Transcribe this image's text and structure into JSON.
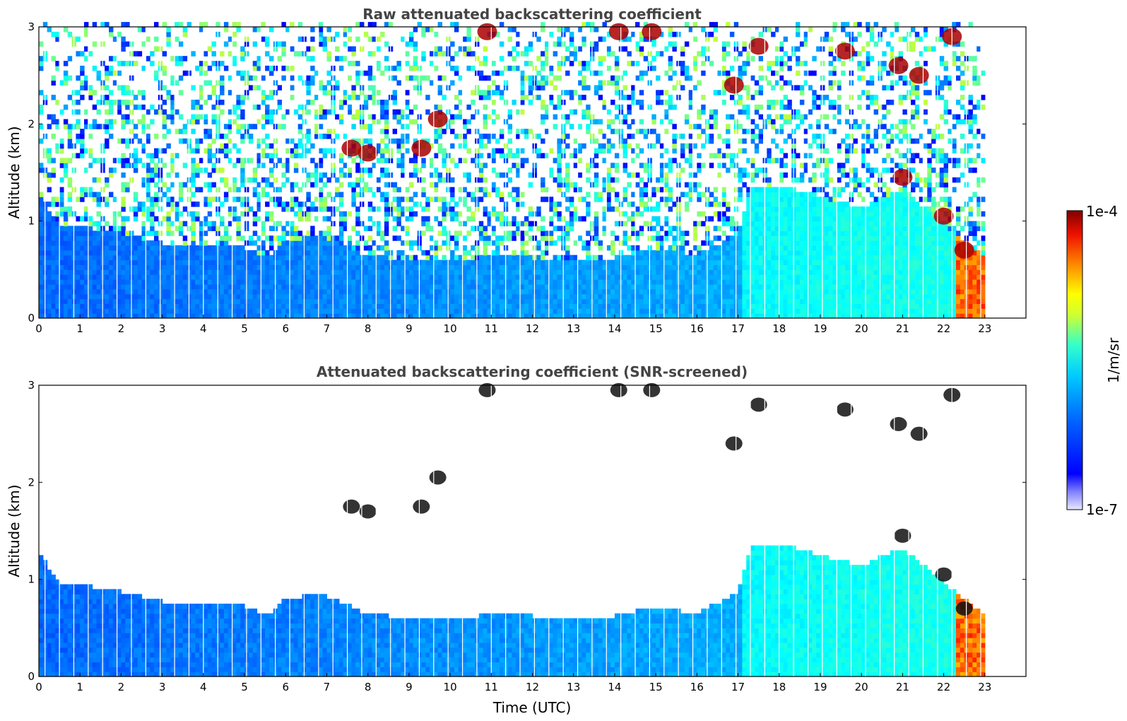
{
  "chart_data": [
    {
      "type": "heatmap",
      "title": "Raw attenuated backscattering coefficient",
      "xlabel": "",
      "ylabel": "Altitude (km)",
      "xlim": [
        0,
        24
      ],
      "ylim": [
        0,
        3
      ],
      "x_ticks": [
        "0",
        "1",
        "2",
        "3",
        "4",
        "5",
        "6",
        "7",
        "8",
        "9",
        "10",
        "11",
        "12",
        "13",
        "14",
        "15",
        "16",
        "17",
        "18",
        "19",
        "20",
        "21",
        "22",
        "23"
      ],
      "y_ticks": [
        "0",
        "1",
        "2",
        "3"
      ],
      "data_end_hour": 23,
      "clouds": [
        {
          "t": 7.6,
          "z": 1.75
        },
        {
          "t": 8.0,
          "z": 1.7
        },
        {
          "t": 9.3,
          "z": 1.75
        },
        {
          "t": 9.7,
          "z": 2.05
        },
        {
          "t": 10.9,
          "z": 2.95
        },
        {
          "t": 14.1,
          "z": 2.95
        },
        {
          "t": 14.9,
          "z": 2.95
        },
        {
          "t": 16.9,
          "z": 2.4
        },
        {
          "t": 17.5,
          "z": 2.8
        },
        {
          "t": 19.6,
          "z": 2.75
        },
        {
          "t": 20.9,
          "z": 2.6
        },
        {
          "t": 21.4,
          "z": 2.5
        },
        {
          "t": 21.0,
          "z": 1.45
        },
        {
          "t": 22.2,
          "z": 2.9
        },
        {
          "t": 22.0,
          "z": 1.05
        },
        {
          "t": 22.5,
          "z": 0.7
        }
      ]
    },
    {
      "type": "heatmap",
      "title": "Attenuated backscattering coefficient (SNR-screened)",
      "xlabel": "Time (UTC)",
      "ylabel": "Altitude (km)",
      "xlim": [
        0,
        24
      ],
      "ylim": [
        0,
        3
      ],
      "x_ticks": [
        "0",
        "1",
        "2",
        "3",
        "4",
        "5",
        "6",
        "7",
        "8",
        "9",
        "10",
        "11",
        "12",
        "13",
        "14",
        "15",
        "16",
        "17",
        "18",
        "19",
        "20",
        "21",
        "22",
        "23"
      ],
      "y_ticks": [
        "0",
        "1",
        "2",
        "3"
      ],
      "data_end_hour": 23,
      "boundary_layer_top_km": [
        [
          0,
          1.25
        ],
        [
          0.5,
          0.95
        ],
        [
          1,
          0.92
        ],
        [
          2,
          0.85
        ],
        [
          3,
          0.75
        ],
        [
          4,
          0.72
        ],
        [
          5,
          0.7
        ],
        [
          5.6,
          0.6
        ],
        [
          6,
          0.78
        ],
        [
          6.8,
          0.82
        ],
        [
          7,
          0.8
        ],
        [
          8,
          0.62
        ],
        [
          9,
          0.58
        ],
        [
          10,
          0.56
        ],
        [
          11,
          0.62
        ],
        [
          12,
          0.6
        ],
        [
          13,
          0.6
        ],
        [
          14,
          0.6
        ],
        [
          15,
          0.7
        ],
        [
          16,
          0.62
        ],
        [
          17,
          0.85
        ],
        [
          17.3,
          1.3
        ],
        [
          18,
          1.35
        ],
        [
          19,
          1.22
        ],
        [
          20,
          1.12
        ],
        [
          21,
          1.3
        ],
        [
          22,
          0.95
        ],
        [
          23,
          0.6
        ]
      ]
    }
  ],
  "colorbar": {
    "label": "1/m/sr",
    "max_label": "1e-4",
    "min_label": "1e-7",
    "scale": "log",
    "colormap": "jet"
  }
}
